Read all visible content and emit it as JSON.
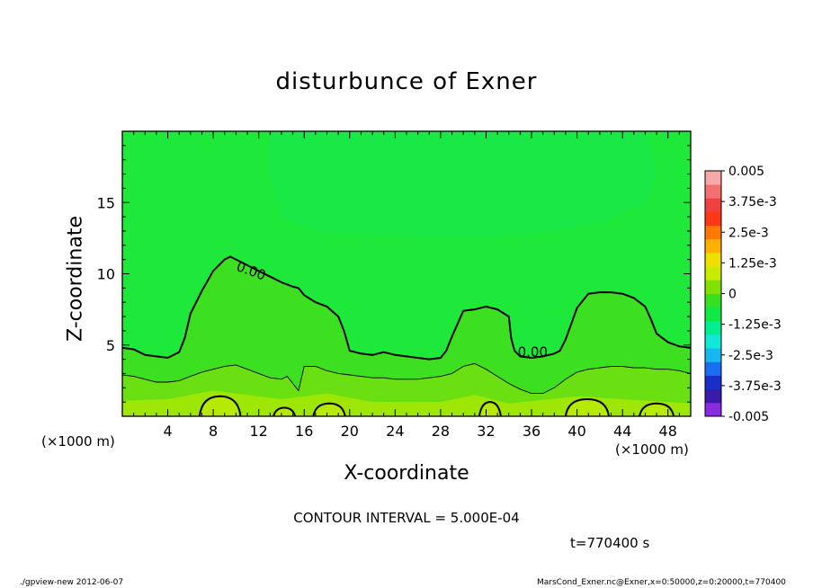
{
  "chart_data": {
    "type": "heatmap",
    "title": "disturbunce of Exner",
    "xlabel": "X-coordinate",
    "ylabel": "Z-coordinate",
    "x_unit_label": "(×1000 m)",
    "xlim": [
      0,
      50
    ],
    "ylim": [
      0,
      20
    ],
    "x_ticks": [
      4,
      8,
      12,
      16,
      20,
      24,
      28,
      32,
      36,
      40,
      44,
      48
    ],
    "y_ticks": [
      5,
      10,
      15
    ],
    "colorbar": {
      "range": [
        -0.005,
        0.005
      ],
      "labels": [
        "0.005",
        "3.75e-3",
        "2.5e-3",
        "1.25e-3",
        "0",
        "-1.25e-3",
        "-2.5e-3",
        "-3.75e-3",
        "-0.005"
      ],
      "colors": [
        "#8a2be2",
        "#3a1aa8",
        "#1a2ec8",
        "#1a6ef0",
        "#16b8f0",
        "#10e8d8",
        "#00f090",
        "#10e848",
        "#38e020",
        "#80e000",
        "#c8ec00",
        "#f0e000",
        "#ffb000",
        "#ff7800",
        "#ff3818",
        "#f04040",
        "#f47070",
        "#f8a8a8"
      ]
    },
    "contour_interval_label": "CONTOUR INTERVAL = 5.000E-04",
    "contour_labels": [
      "0.00",
      "0.00"
    ],
    "zero_contour": {
      "x": [
        0,
        1,
        2,
        3,
        4,
        5,
        5.5,
        6,
        7,
        8,
        9,
        9.5,
        10,
        11,
        12,
        13,
        14,
        15,
        15.5,
        16,
        17,
        18,
        19,
        19.5,
        20,
        21,
        22,
        23,
        24,
        25,
        26,
        27,
        28,
        28.5,
        29,
        30,
        31,
        32,
        33,
        34,
        34.2,
        34.5,
        35,
        36,
        37,
        38,
        38.5,
        39,
        40,
        41,
        42,
        43,
        44,
        45,
        46,
        46.5,
        47,
        48,
        49,
        50
      ],
      "z": [
        4.8,
        4.7,
        4.3,
        4.2,
        4.1,
        4.5,
        5.5,
        7.2,
        8.8,
        10.2,
        11.0,
        11.2,
        11.0,
        10.6,
        10.2,
        9.8,
        9.4,
        9.1,
        9.0,
        8.5,
        8.0,
        7.7,
        7.0,
        6.0,
        4.6,
        4.4,
        4.3,
        4.5,
        4.3,
        4.2,
        4.1,
        4.0,
        4.1,
        4.6,
        5.6,
        7.4,
        7.5,
        7.7,
        7.5,
        7.0,
        5.5,
        4.6,
        4.2,
        4.1,
        4.2,
        4.4,
        4.6,
        5.4,
        7.6,
        8.6,
        8.7,
        8.7,
        8.6,
        8.3,
        7.7,
        6.8,
        5.8,
        5.2,
        4.9,
        4.8
      ]
    },
    "lower_contour": {
      "x": [
        0,
        1,
        2,
        3,
        4,
        5,
        6,
        7,
        8,
        9,
        10,
        11,
        12,
        13,
        14,
        14.5,
        15,
        15.5,
        16,
        17,
        18,
        19,
        20,
        21,
        22,
        23,
        24,
        25,
        26,
        27,
        28,
        29,
        30,
        31,
        32,
        33,
        34,
        35,
        36,
        37,
        38,
        39,
        40,
        41,
        42,
        43,
        44,
        45,
        46,
        47,
        48,
        49,
        50
      ],
      "z": [
        2.9,
        2.8,
        2.6,
        2.4,
        2.4,
        2.5,
        2.8,
        3.1,
        3.3,
        3.5,
        3.6,
        3.3,
        3.0,
        2.7,
        2.6,
        2.8,
        2.3,
        1.8,
        3.5,
        3.5,
        3.2,
        3.0,
        2.9,
        2.8,
        2.7,
        2.7,
        2.6,
        2.6,
        2.6,
        2.7,
        2.8,
        3.0,
        3.5,
        3.7,
        3.3,
        2.8,
        2.3,
        1.9,
        1.6,
        1.6,
        2.0,
        2.6,
        3.1,
        3.3,
        3.4,
        3.5,
        3.5,
        3.4,
        3.4,
        3.3,
        3.3,
        3.2,
        3.0
      ]
    }
  },
  "labels": {
    "x_unit_left": "(×1000 m)",
    "x_unit_right": "(×1000 m)",
    "time": "t=770400 s",
    "footer_left": "./gpview-new  2012-06-07",
    "footer_right": "MarsCond_Exner.nc@Exner,x=0:50000,z=0:20000,t=770400"
  }
}
